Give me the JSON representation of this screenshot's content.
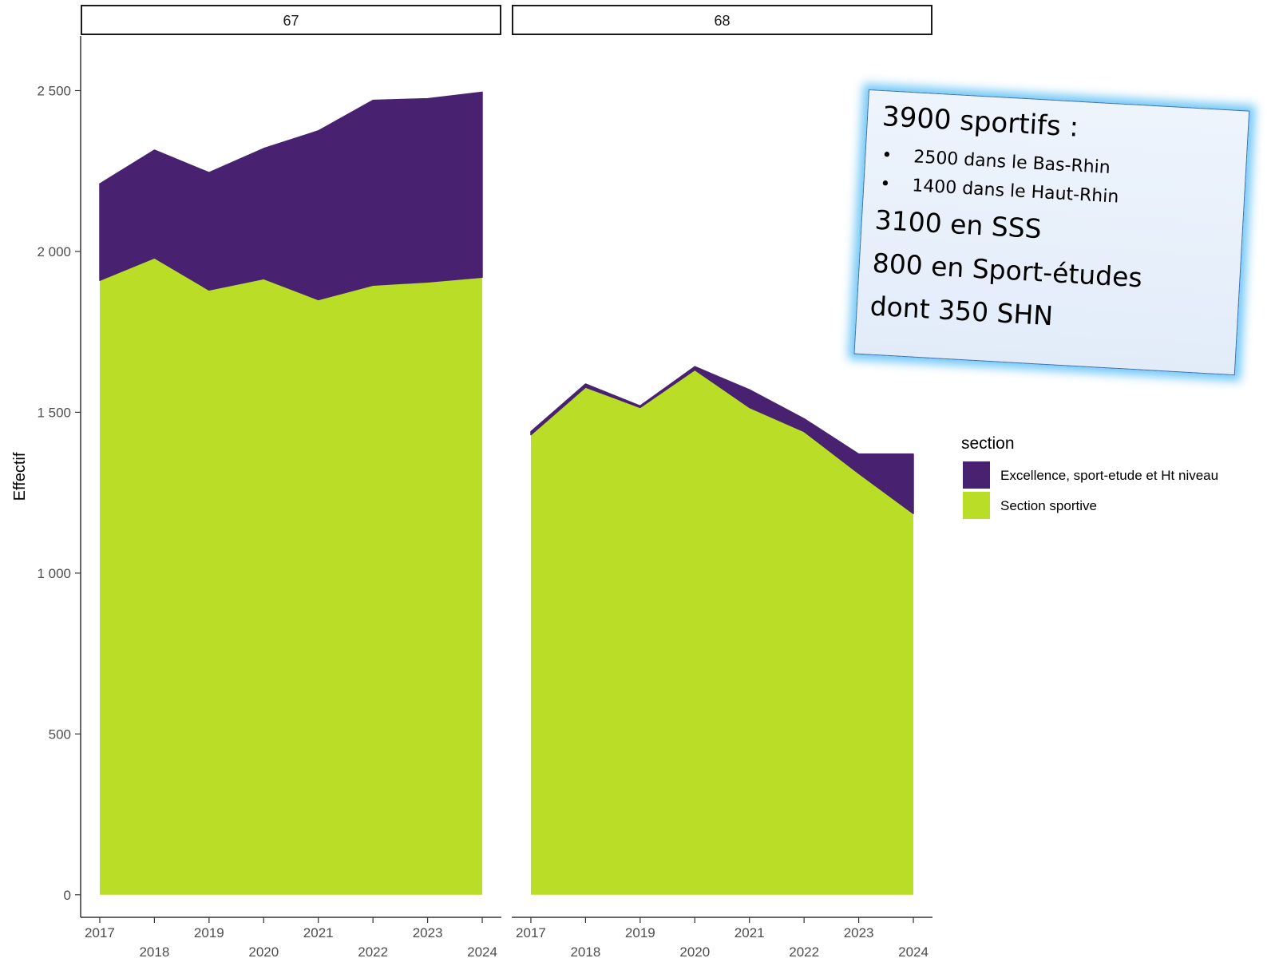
{
  "chart_data": {
    "type": "area",
    "stacked": true,
    "facets": [
      {
        "label": "67",
        "x": [
          2017,
          2018,
          2019,
          2020,
          2021,
          2022,
          2023,
          2024
        ],
        "series": [
          {
            "name": "Section sportive",
            "values": [
              1910,
              1980,
              1880,
              1915,
              1850,
              1895,
              1905,
              1920
            ]
          },
          {
            "name": "Excellence, sport-etude et Ht niveau",
            "values": [
              300,
              335,
              365,
              405,
              525,
              575,
              570,
              575
            ]
          }
        ]
      },
      {
        "label": "68",
        "x": [
          2017,
          2018,
          2019,
          2020,
          2021,
          2022,
          2023,
          2024
        ],
        "series": [
          {
            "name": "Section sportive",
            "values": [
              1430,
              1578,
              1515,
              1632,
              1515,
              1440,
              1310,
              1185
            ]
          },
          {
            "name": "Excellence, sport-etude et Ht niveau",
            "values": [
              10,
              10,
              5,
              10,
              55,
              40,
              60,
              185
            ]
          }
        ]
      }
    ],
    "x_tick_labels": [
      "2017",
      "2018",
      "2019",
      "2020",
      "2021",
      "2022",
      "2023",
      "2024"
    ],
    "y_ticks": [
      0,
      500,
      1000,
      1500,
      2000,
      2500
    ],
    "y_tick_labels": [
      "0",
      "500",
      "1 000",
      "1 500",
      "2 000",
      "2 500"
    ],
    "ylim": [
      -70,
      2670
    ],
    "xlabel": "",
    "ylabel": "Effectif",
    "grid": false,
    "legend": {
      "title": "section",
      "position": "right",
      "entries": [
        {
          "label": "Excellence, sport-etude et Ht niveau",
          "color": "#482271"
        },
        {
          "label": "Section sportive",
          "color": "#bade28"
        }
      ]
    }
  },
  "colors": {
    "excellence": "#482271",
    "section_sportive": "#bade28",
    "axis": "#333333",
    "callout_glow": "#5abef5"
  },
  "callout": {
    "headline": "3900 sportifs :",
    "bullets": [
      "2500 dans le Bas-Rhin",
      "1400 dans le Haut-Rhin"
    ],
    "bullet_symbol": "•",
    "lines": [
      "3100 en SSS",
      "800 en Sport-études",
      "dont 350 SHN"
    ]
  }
}
